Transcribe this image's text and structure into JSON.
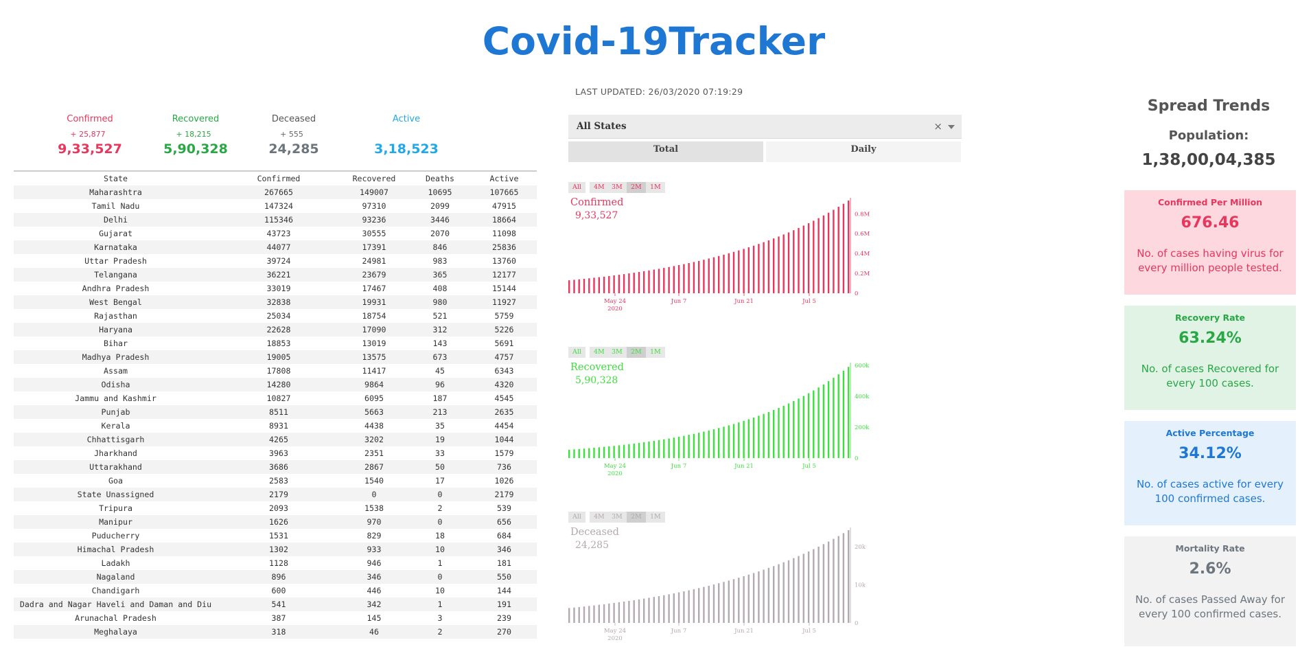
{
  "app": {
    "title": "Covid-19Tracker",
    "last_updated": "LAST UPDATED: 26/03/2020 07:19:29"
  },
  "colors": {
    "accent": "#1f77d4",
    "confirmed": "#e8365d",
    "recovered": "#28a745",
    "deceased": "#6c757d",
    "active": "#20a8ea"
  },
  "summary": {
    "confirmed": {
      "label": "Confirmed",
      "delta": "+ 25,877",
      "value": "9,33,527"
    },
    "recovered": {
      "label": "Recovered",
      "delta": "+ 18,215",
      "value": "5,90,328"
    },
    "deceased": {
      "label": "Deceased",
      "delta": "+ 555",
      "value": "24,285"
    },
    "active": {
      "label": "Active",
      "delta": "",
      "value": "3,18,523"
    }
  },
  "table": {
    "headers": [
      "State",
      "Confirmed",
      "Recovered",
      "Deaths",
      "Active"
    ],
    "rows": [
      [
        "Maharashtra",
        "267665",
        "149007",
        "10695",
        "107665"
      ],
      [
        "Tamil Nadu",
        "147324",
        "97310",
        "2099",
        "47915"
      ],
      [
        "Delhi",
        "115346",
        "93236",
        "3446",
        "18664"
      ],
      [
        "Gujarat",
        "43723",
        "30555",
        "2070",
        "11098"
      ],
      [
        "Karnataka",
        "44077",
        "17391",
        "846",
        "25836"
      ],
      [
        "Uttar Pradesh",
        "39724",
        "24981",
        "983",
        "13760"
      ],
      [
        "Telangana",
        "36221",
        "23679",
        "365",
        "12177"
      ],
      [
        "Andhra Pradesh",
        "33019",
        "17467",
        "408",
        "15144"
      ],
      [
        "West Bengal",
        "32838",
        "19931",
        "980",
        "11927"
      ],
      [
        "Rajasthan",
        "25034",
        "18754",
        "521",
        "5759"
      ],
      [
        "Haryana",
        "22628",
        "17090",
        "312",
        "5226"
      ],
      [
        "Bihar",
        "18853",
        "13019",
        "143",
        "5691"
      ],
      [
        "Madhya Pradesh",
        "19005",
        "13575",
        "673",
        "4757"
      ],
      [
        "Assam",
        "17808",
        "11417",
        "45",
        "6343"
      ],
      [
        "Odisha",
        "14280",
        "9864",
        "96",
        "4320"
      ],
      [
        "Jammu and Kashmir",
        "10827",
        "6095",
        "187",
        "4545"
      ],
      [
        "Punjab",
        "8511",
        "5663",
        "213",
        "2635"
      ],
      [
        "Kerala",
        "8931",
        "4438",
        "35",
        "4454"
      ],
      [
        "Chhattisgarh",
        "4265",
        "3202",
        "19",
        "1044"
      ],
      [
        "Jharkhand",
        "3963",
        "2351",
        "33",
        "1579"
      ],
      [
        "Uttarakhand",
        "3686",
        "2867",
        "50",
        "736"
      ],
      [
        "Goa",
        "2583",
        "1540",
        "17",
        "1026"
      ],
      [
        "State Unassigned",
        "2179",
        "0",
        "0",
        "2179"
      ],
      [
        "Tripura",
        "2093",
        "1538",
        "2",
        "539"
      ],
      [
        "Manipur",
        "1626",
        "970",
        "0",
        "656"
      ],
      [
        "Puducherry",
        "1531",
        "829",
        "18",
        "684"
      ],
      [
        "Himachal Pradesh",
        "1302",
        "933",
        "10",
        "346"
      ],
      [
        "Ladakh",
        "1128",
        "946",
        "1",
        "181"
      ],
      [
        "Nagaland",
        "896",
        "346",
        "0",
        "550"
      ],
      [
        "Chandigarh",
        "600",
        "446",
        "10",
        "144"
      ],
      [
        "Dadra and Nagar Haveli and Daman and Diu",
        "541",
        "342",
        "1",
        "191"
      ],
      [
        "Arunachal Pradesh",
        "387",
        "145",
        "3",
        "239"
      ],
      [
        "Meghalaya",
        "318",
        "46",
        "2",
        "270"
      ]
    ]
  },
  "controls": {
    "state_select": "All States",
    "clear_icon": "×",
    "tabs": [
      "Total",
      "Daily"
    ],
    "ranges": [
      "All",
      "4M",
      "3M",
      "2M",
      "1M"
    ],
    "selected_range": "2M"
  },
  "right": {
    "title": "Spread Trends",
    "population_label": "Population:",
    "population": "1,38,00,04,385",
    "cards": [
      {
        "title": "Confirmed Per Million",
        "value": "676.46",
        "desc": "No. of cases having virus for every million people tested."
      },
      {
        "title": "Recovery Rate",
        "value": "63.24%",
        "desc": "No. of cases Recovered for every 100 cases."
      },
      {
        "title": "Active Percentage",
        "value": "34.12%",
        "desc": "No. of cases active for every 100 confirmed cases."
      },
      {
        "title": "Mortality Rate",
        "value": "2.6%",
        "desc": "No. of cases Passed Away for every 100 confirmed cases."
      }
    ]
  },
  "chart_data": [
    {
      "type": "bar",
      "series_label": "Confirmed",
      "value_label": "9,33,527",
      "color": "#e8365d",
      "x_ticks": [
        "May 24",
        "Jun 7",
        "Jun 21",
        "Jul 5"
      ],
      "x_year": "2020",
      "y_ticks": [
        "0",
        "0.2M",
        "0.4M",
        "0.6M",
        "0.8M"
      ],
      "y_tick_values": [
        0,
        200000,
        400000,
        600000,
        800000
      ],
      "ylim": [
        0,
        933527
      ],
      "start": 131000,
      "end": 933527,
      "days": 57
    },
    {
      "type": "bar",
      "series_label": "Recovered",
      "value_label": "5,90,328",
      "color": "#3ee03e",
      "x_ticks": [
        "May 24",
        "Jun 7",
        "Jun 21",
        "Jul 5"
      ],
      "x_year": "2020",
      "y_ticks": [
        "0",
        "200k",
        "400k",
        "600k"
      ],
      "y_tick_values": [
        0,
        200000,
        400000,
        600000
      ],
      "ylim": [
        0,
        600000
      ],
      "start": 54000,
      "end": 590328,
      "days": 57
    },
    {
      "type": "bar",
      "series_label": "Deceased",
      "value_label": "24,285",
      "color": "#b4a9b0",
      "x_ticks": [
        "May 24",
        "Jun 7",
        "Jun 21",
        "Jul 5"
      ],
      "x_year": "2020",
      "y_ticks": [
        "0",
        "10k",
        "20k"
      ],
      "y_tick_values": [
        0,
        10000,
        20000
      ],
      "ylim": [
        0,
        24285
      ],
      "start": 3900,
      "end": 24285,
      "days": 57
    }
  ]
}
